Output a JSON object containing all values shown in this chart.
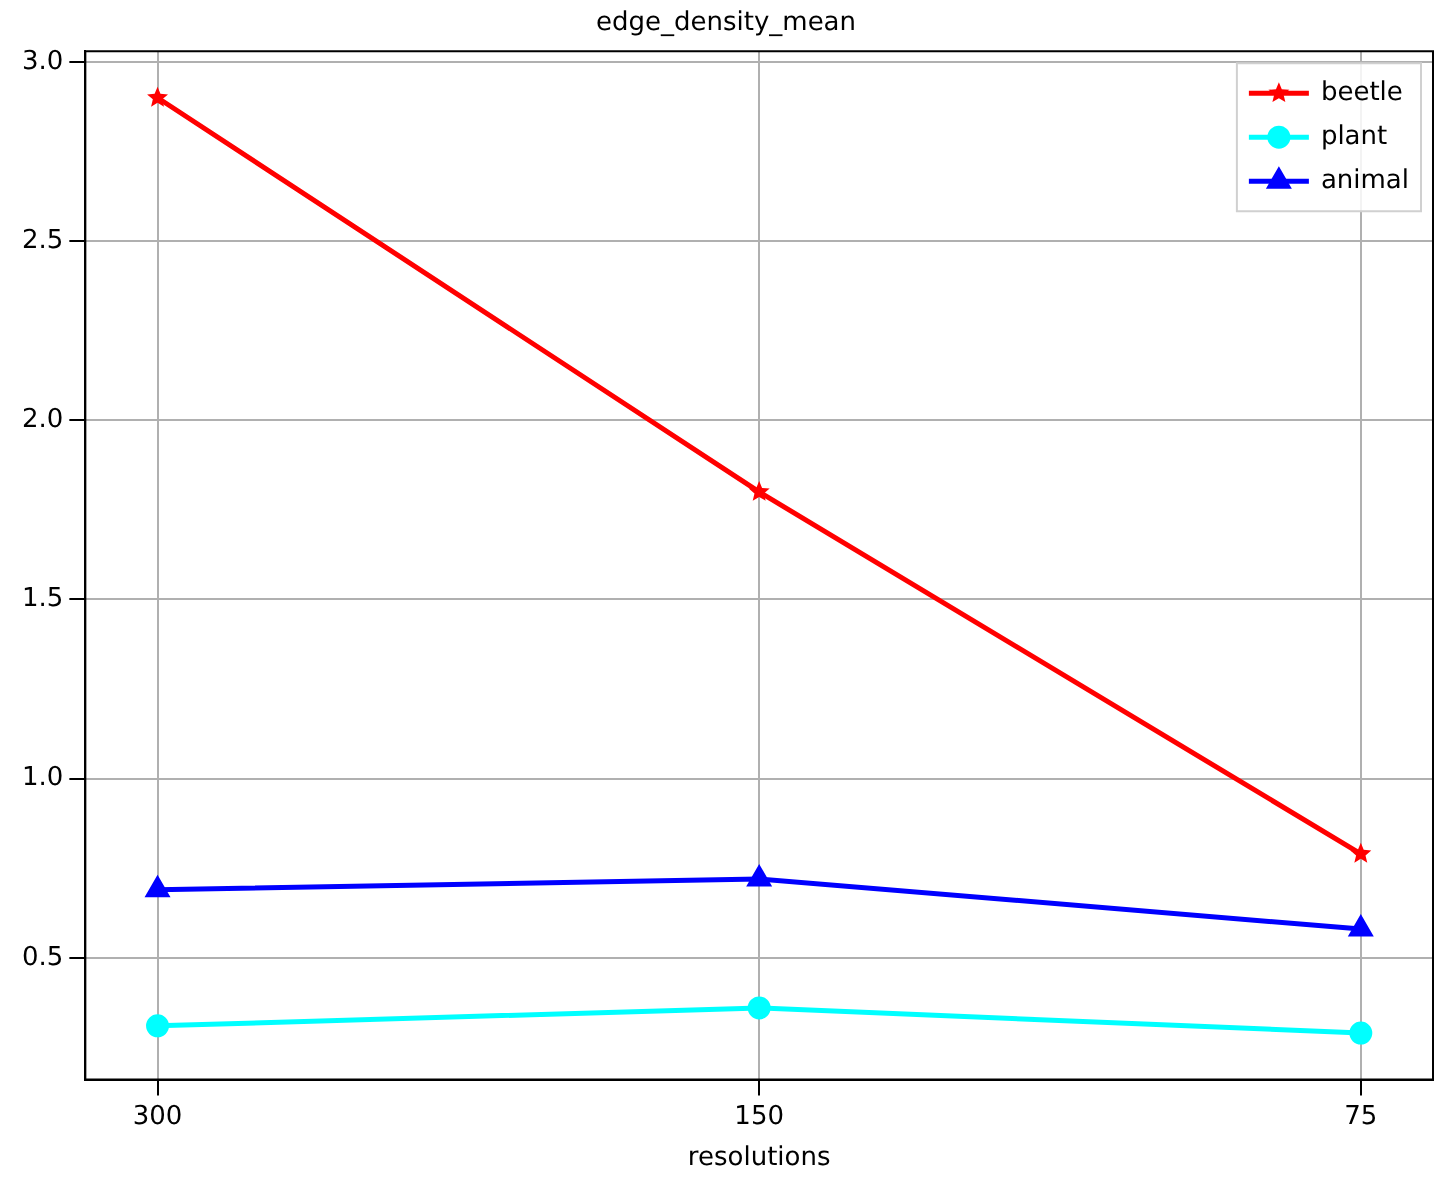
{
  "chart_data": {
    "type": "line",
    "title": "edge_density_mean",
    "xlabel": "resolutions",
    "categories": [
      "300",
      "150",
      "75"
    ],
    "series": [
      {
        "name": "beetle",
        "color": "#ff0000",
        "marker": "star",
        "values": [
          2.9,
          1.8,
          0.79
        ]
      },
      {
        "name": "plant",
        "color": "#00ffff",
        "marker": "circle",
        "values": [
          0.31,
          0.36,
          0.29
        ]
      },
      {
        "name": "animal",
        "color": "#0000ff",
        "marker": "triangle",
        "values": [
          0.69,
          0.72,
          0.58
        ]
      }
    ],
    "ylim": [
      0.16,
      3.03
    ],
    "yticks": [
      0.5,
      {
        "value": 1,
        "label": "1.0"
      },
      1.5,
      {
        "value": 2,
        "label": "2.0"
      },
      2.5,
      {
        "value": 3,
        "label": "3.0"
      }
    ],
    "grid": true,
    "legend": "top right",
    "line_style": "solid"
  }
}
